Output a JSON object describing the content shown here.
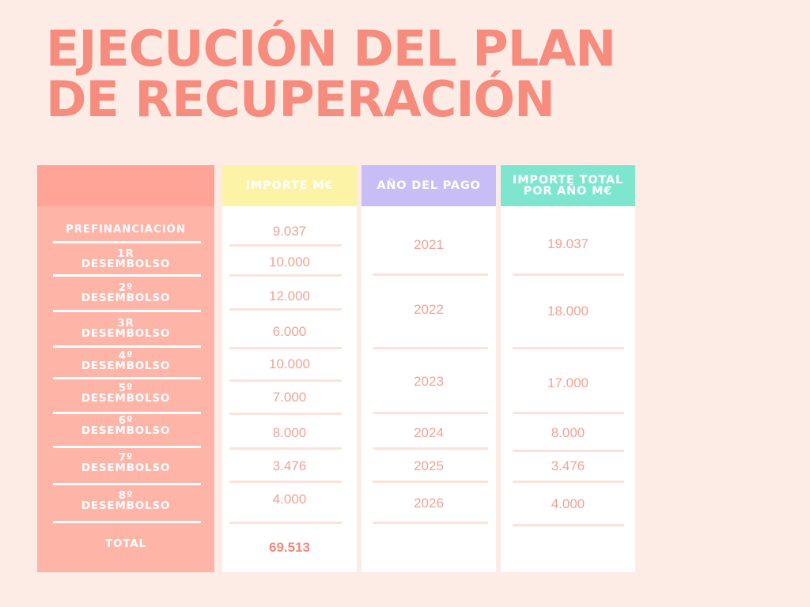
{
  "title": "EJECUCIÓN DEL PLAN DE RECUPERACIÓN",
  "colors": {
    "background": "#fdebe5",
    "title": "#f58c7e",
    "label_column": "#ffb4a8",
    "label_header": "#ffa496",
    "importe_header": "#fdf3a6",
    "anio_header": "#c8bef5",
    "total_anio_header": "#7ee6cf",
    "value_text": "#f2a293"
  },
  "chart_data": {
    "type": "table",
    "columns": [
      "",
      "IMPORTE M€",
      "AÑO DEL PAGO",
      "IMPORTE TOTAL POR AÑO M€"
    ],
    "rows": [
      {
        "label": "PREFINANCIACIÓN",
        "importe": "9.037"
      },
      {
        "label": "1R DESEMBOLSO",
        "importe": "10.000"
      },
      {
        "label": "2º DESEMBOLSO",
        "importe": "12.000"
      },
      {
        "label": "3R DESEMBOLSO",
        "importe": "6.000"
      },
      {
        "label": "4º DESEMBOLSO",
        "importe": "10.000"
      },
      {
        "label": "5º DESEMBOLSO",
        "importe": "7.000"
      },
      {
        "label": "6º DESEMBOLSO",
        "importe": "8.000"
      },
      {
        "label": "7º DESEMBOLSO",
        "importe": "3.476"
      },
      {
        "label": "8º DESEMBOLSO",
        "importe": "4.000"
      }
    ],
    "years": [
      {
        "year": "2021",
        "total": "19.037"
      },
      {
        "year": "2022",
        "total": "18.000"
      },
      {
        "year": "2023",
        "total": "17.000"
      },
      {
        "year": "2024",
        "total": "8.000"
      },
      {
        "year": "2025",
        "total": "3.476"
      },
      {
        "year": "2026",
        "total": "4.000"
      }
    ],
    "total_label": "TOTAL",
    "total_value": "69.513"
  }
}
